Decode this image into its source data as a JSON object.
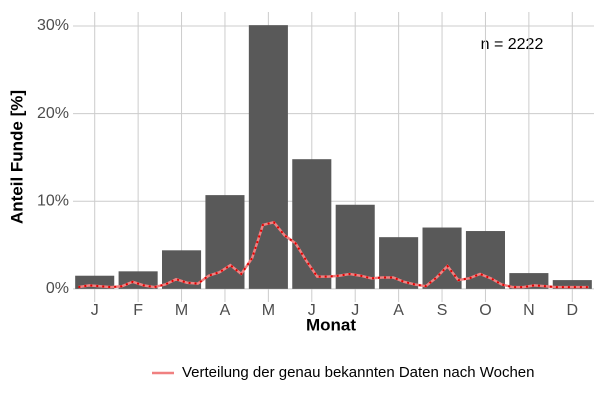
{
  "chart_data": {
    "type": "bar",
    "categories": [
      "J",
      "F",
      "M",
      "A",
      "M",
      "J",
      "J",
      "A",
      "S",
      "O",
      "N",
      "D"
    ],
    "values": [
      1.5,
      2.0,
      4.4,
      10.7,
      30.1,
      14.8,
      9.6,
      5.9,
      7.0,
      6.6,
      1.8,
      1.0
    ],
    "color": "#595959",
    "ylim": [
      -1.5,
      31.6
    ],
    "yticks": [
      {
        "value": 0,
        "label": "0%"
      },
      {
        "value": 10,
        "label": "10%"
      },
      {
        "value": 20,
        "label": "20%"
      },
      {
        "value": 30,
        "label": "30%"
      }
    ],
    "grid": true,
    "xlabel": "Monat",
    "ylabel": "Anteil Funde [%]",
    "annotation": "n = 2222",
    "legend": "bottom",
    "line": {
      "type": "line",
      "name": "Verteilung der genau bekannten Daten nach Wochen",
      "color": "#f08080",
      "dash_color": "#e00000",
      "x": [
        1,
        2,
        3,
        4,
        5,
        6,
        7,
        8,
        9,
        10,
        11,
        12,
        13,
        14,
        15,
        16,
        17,
        18,
        19,
        20,
        21,
        22,
        23,
        24,
        25,
        26,
        27,
        28,
        29,
        30,
        31,
        32,
        33,
        34,
        35,
        36,
        37,
        38,
        39,
        40,
        41,
        42,
        43,
        44,
        45,
        46,
        47,
        48
      ],
      "values": [
        0.2,
        0.4,
        0.3,
        0.2,
        0.3,
        0.8,
        0.4,
        0.2,
        0.5,
        1.1,
        0.7,
        0.6,
        1.5,
        1.9,
        2.7,
        1.7,
        3.5,
        7.3,
        7.6,
        6.1,
        5.2,
        3.2,
        1.4,
        1.4,
        1.5,
        1.7,
        1.5,
        1.2,
        1.3,
        1.3,
        0.8,
        0.5,
        0.3,
        1.3,
        2.6,
        1.0,
        1.2,
        1.7,
        1.2,
        0.5,
        0.2,
        0.2,
        0.4,
        0.3,
        0.2,
        0.2,
        0.2,
        0.2
      ]
    }
  }
}
